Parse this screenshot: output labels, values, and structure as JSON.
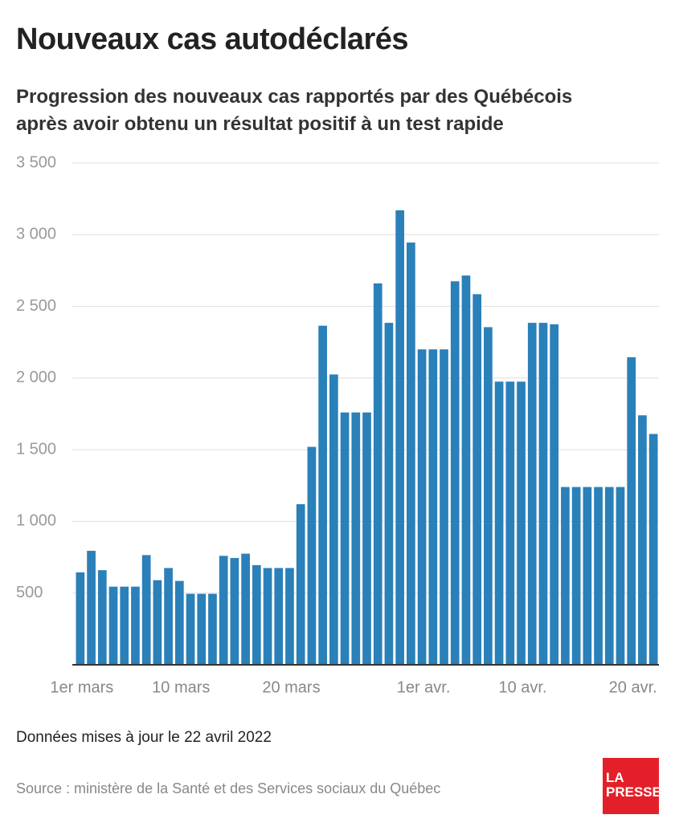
{
  "chart_data": {
    "type": "bar",
    "title": "Nouveaux cas autodéclarés",
    "subtitle": "Progression des nouveaux cas rapportés par des Québécois après avoir obtenu un résultat positif à un test rapide",
    "note": "Données mises à jour le 22 avril 2022",
    "source": "Source : ministère de la Santé et des Services sociaux du Québec",
    "logo": [
      "LA",
      "PRESSE"
    ],
    "categories": [
      "1er mars",
      null,
      null,
      null,
      null,
      null,
      null,
      null,
      null,
      "10 mars",
      null,
      null,
      null,
      null,
      null,
      null,
      null,
      null,
      null,
      "20 mars",
      null,
      null,
      null,
      null,
      null,
      null,
      null,
      null,
      null,
      null,
      null,
      "1er avr.",
      null,
      null,
      null,
      null,
      null,
      null,
      null,
      null,
      "10 avr.",
      null,
      null,
      null,
      null,
      null,
      null,
      null,
      null,
      null,
      "20 avr.",
      null,
      null
    ],
    "values": [
      645,
      795,
      660,
      545,
      545,
      545,
      765,
      590,
      675,
      585,
      495,
      495,
      495,
      760,
      745,
      775,
      695,
      675,
      675,
      675,
      1120,
      1520,
      2365,
      2025,
      1760,
      1760,
      1760,
      2660,
      2385,
      3170,
      2945,
      2200,
      2200,
      2200,
      2675,
      2715,
      2585,
      2355,
      1975,
      1975,
      1975,
      2385,
      2385,
      2375,
      1240,
      1240,
      1240,
      1240,
      1240,
      1240,
      2145,
      1740,
      1610
    ],
    "color": "#2a80b9",
    "ylim": [
      0,
      3500
    ],
    "yticks": [
      500,
      {
        "value": 1000,
        "label": "1 000"
      },
      {
        "value": 1500,
        "label": "1 500"
      },
      {
        "value": 2000,
        "label": "2 000"
      },
      {
        "value": 2500,
        "label": "2 500"
      },
      {
        "value": 3000,
        "label": "3 000"
      },
      {
        "value": 3500,
        "label": "3 500"
      }
    ],
    "grid": true
  }
}
